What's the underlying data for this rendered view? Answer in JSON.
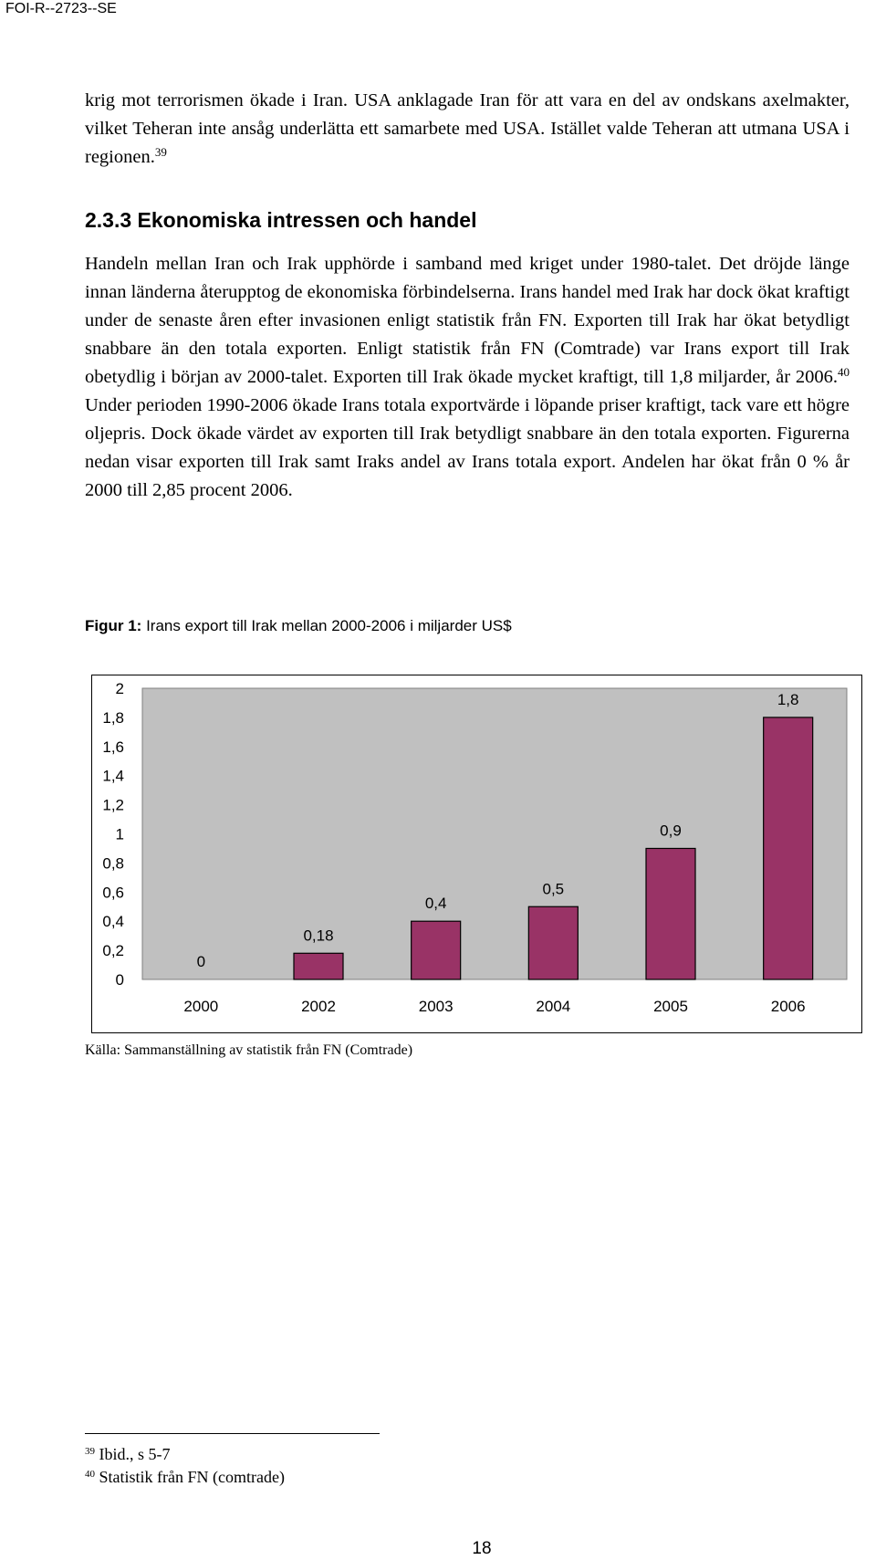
{
  "header": {
    "doc_id": "FOI-R--2723--SE"
  },
  "para1": {
    "text": "krig mot terrorismen ökade i Iran. USA anklagade Iran för att vara en del av ondskans axelmakter, vilket Teheran inte ansåg underlätta ett samarbete med USA. Istället valde Teheran att utmana USA i regionen.",
    "note": "39"
  },
  "section": {
    "title": "2.3.3 Ekonomiska intressen och handel"
  },
  "para2": {
    "text_a": "Handeln mellan Iran och Irak upphörde i samband med kriget under 1980-talet. Det dröjde länge innan länderna återupptog de ekonomiska förbindelserna. Irans handel med Irak har dock ökat kraftigt under de senaste åren efter invasionen enligt statistik från FN. Exporten till Irak har ökat betydligt snabbare än den totala exporten. Enligt statistik från FN (Comtrade) var Irans export till Irak obetydlig i början av 2000-talet. Exporten till Irak ökade mycket kraftigt, till 1,8 miljarder, år 2006.",
    "note": "40",
    "text_b": " Under perioden 1990-2006 ökade Irans totala exportvärde i löpande priser kraftigt, tack vare ett högre oljepris. Dock ökade värdet av exporten till Irak betydligt snabbare än den totala exporten. Figurerna nedan visar exporten till Irak samt Iraks andel av Irans totala export. Andelen har ökat från 0 % år 2000 till 2,85 procent 2006."
  },
  "figure": {
    "label": "Figur 1:",
    "title": " Irans export till Irak mellan 2000-2006 i miljarder US$"
  },
  "chart_data": {
    "type": "bar",
    "categories": [
      "2000",
      "2002",
      "2003",
      "2004",
      "2005",
      "2006"
    ],
    "values": [
      0,
      0.18,
      0.4,
      0.5,
      0.9,
      1.8
    ],
    "data_labels": [
      "0",
      "0,18",
      "0,4",
      "0,5",
      "0,9",
      "1,8"
    ],
    "y_ticks": [
      "0",
      "0,2",
      "0,4",
      "0,6",
      "0,8",
      "1",
      "1,2",
      "1,4",
      "1,6",
      "1,8",
      "2"
    ],
    "ylim": [
      0,
      2
    ],
    "grid": false,
    "legend": "none",
    "bar_color": "#993366",
    "plot_bg": "#c0c0c0"
  },
  "source": "Källa: Sammanställning av statistik från FN (Comtrade)",
  "footnotes": [
    {
      "num": "39",
      "text": "Ibid., s 5-7"
    },
    {
      "num": "40",
      "text": "Statistik från FN (comtrade)"
    }
  ],
  "page_number": "18"
}
